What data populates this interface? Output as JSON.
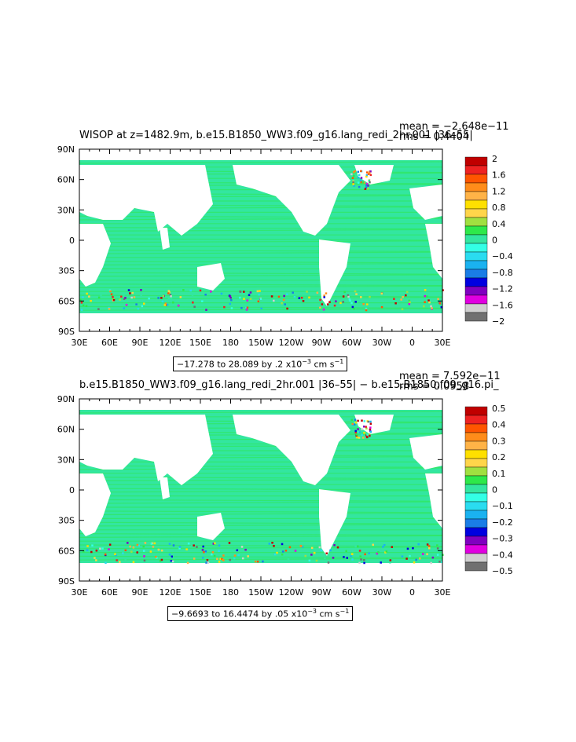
{
  "panels": [
    {
      "title": "WISOP at z=1482.9m, b.e15.B1850_WW3.f09_g16.lang_redi_2hr.001 |36–55|",
      "mean": "mean = −2.648e−11",
      "rms": "rms = 0.4404",
      "range_prefix": "−17.278 to 28.089 by .2 x10",
      "range_exp": "−3",
      "range_units": " cm s",
      "range_unit_exp": "−1",
      "colorbar_labels": [
        "2",
        "1.6",
        "1.2",
        "0.8",
        "0.4",
        "0",
        "−0.4",
        "−0.8",
        "−1.2",
        "−1.6",
        "−2"
      ]
    },
    {
      "title": "b.e15.B1850_WW3.f09_g16.lang_redi_2hr.001 |36–55| − b.e15.B1850.f09_g16.pi_",
      "mean": "mean = 7.592e−11",
      "rms": "rms = 0.0958",
      "range_prefix": "−9.6693 to 16.4474 by .05 x10",
      "range_exp": "−3",
      "range_units": " cm s",
      "range_unit_exp": "−1",
      "colorbar_labels": [
        "0.5",
        "0.4",
        "0.3",
        "0.2",
        "0.1",
        "0",
        "−0.1",
        "−0.2",
        "−0.3",
        "−0.4",
        "−0.5"
      ]
    }
  ],
  "lon_labels": [
    "30E",
    "60E",
    "90E",
    "120E",
    "150E",
    "180",
    "150W",
    "120W",
    "90W",
    "60W",
    "30W",
    "0",
    "30E"
  ],
  "lat_labels": [
    "90N",
    "60N",
    "30N",
    "0",
    "30S",
    "60S",
    "90S"
  ],
  "colorbar_colors": [
    "#c00000",
    "#ee2222",
    "#ff5500",
    "#ff8c1a",
    "#ffb347",
    "#ffe000",
    "#ffd54a",
    "#a0e040",
    "#2ee84a",
    "#33e6a0",
    "#33ffe6",
    "#2adcf0",
    "#1ab2f0",
    "#1a7de6",
    "#0000e0",
    "#8000c0",
    "#e000e0",
    "#d0d0d0",
    "#707070"
  ],
  "ocean_color": "#33e6a0"
}
